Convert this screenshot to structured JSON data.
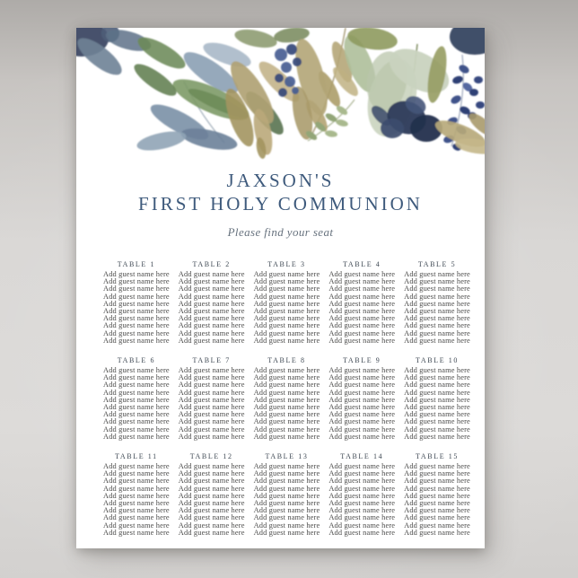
{
  "poster": {
    "title_line1": "JAXSON'S",
    "title_line2": "FIRST HOLY COMMUNION",
    "subtitle": "Please find your seat",
    "colors": {
      "title": "#3E5A7C",
      "subtitle": "#67727E",
      "table_header": "#3F4954",
      "guest_text": "#4A4A49",
      "poster_bg": "#FFFFFF",
      "backdrop_gray": "#D6D4D2"
    },
    "artwork": {
      "name": "watercolor-foliage-garland",
      "palette": {
        "navy": "#2C3A59",
        "berry_blue": "#475D92",
        "slate_blue": "#7A90A6",
        "pale_slate": "#A3B4C4",
        "green": "#7D9A66",
        "dark_green": "#4F6B46",
        "sage": "#C6D0BB",
        "olive": "#8E9A5E",
        "tan": "#B3A577"
      }
    },
    "seating": {
      "tables": [
        {
          "label": "TABLE 1",
          "guests": [
            "Add guest name here",
            "Add guest name here",
            "Add guest name here",
            "Add guest name here",
            "Add guest name here",
            "Add guest name here",
            "Add guest name here",
            "Add guest name here",
            "Add guest name here",
            "Add guest name here"
          ]
        },
        {
          "label": "TABLE 2",
          "guests": [
            "Add guest name here",
            "Add guest name here",
            "Add guest name here",
            "Add guest name here",
            "Add guest name here",
            "Add guest name here",
            "Add guest name here",
            "Add guest name here",
            "Add guest name here",
            "Add guest name here"
          ]
        },
        {
          "label": "TABLE 3",
          "guests": [
            "Add guest name here",
            "Add guest name here",
            "Add guest name here",
            "Add guest name here",
            "Add guest name here",
            "Add guest name here",
            "Add guest name here",
            "Add guest name here",
            "Add guest name here",
            "Add guest name here"
          ]
        },
        {
          "label": "TABLE 4",
          "guests": [
            "Add guest name here",
            "Add guest name here",
            "Add guest name here",
            "Add guest name here",
            "Add guest name here",
            "Add guest name here",
            "Add guest name here",
            "Add guest name here",
            "Add guest name here",
            "Add guest name here"
          ]
        },
        {
          "label": "TABLE 5",
          "guests": [
            "Add guest name here",
            "Add guest name here",
            "Add guest name here",
            "Add guest name here",
            "Add guest name here",
            "Add guest name here",
            "Add guest name here",
            "Add guest name here",
            "Add guest name here",
            "Add guest name here"
          ]
        },
        {
          "label": "TABLE 6",
          "guests": [
            "Add guest name here",
            "Add guest name here",
            "Add guest name here",
            "Add guest name here",
            "Add guest name here",
            "Add guest name here",
            "Add guest name here",
            "Add guest name here",
            "Add guest name here",
            "Add guest name here"
          ]
        },
        {
          "label": "TABLE 7",
          "guests": [
            "Add guest name here",
            "Add guest name here",
            "Add guest name here",
            "Add guest name here",
            "Add guest name here",
            "Add guest name here",
            "Add guest name here",
            "Add guest name here",
            "Add guest name here",
            "Add guest name here"
          ]
        },
        {
          "label": "TABLE 8",
          "guests": [
            "Add guest name here",
            "Add guest name here",
            "Add guest name here",
            "Add guest name here",
            "Add guest name here",
            "Add guest name here",
            "Add guest name here",
            "Add guest name here",
            "Add guest name here",
            "Add guest name here"
          ]
        },
        {
          "label": "TABLE 9",
          "guests": [
            "Add guest name here",
            "Add guest name here",
            "Add guest name here",
            "Add guest name here",
            "Add guest name here",
            "Add guest name here",
            "Add guest name here",
            "Add guest name here",
            "Add guest name here",
            "Add guest name here"
          ]
        },
        {
          "label": "TABLE 10",
          "guests": [
            "Add guest name here",
            "Add guest name here",
            "Add guest name here",
            "Add guest name here",
            "Add guest name here",
            "Add guest name here",
            "Add guest name here",
            "Add guest name here",
            "Add guest name here",
            "Add guest name here"
          ]
        },
        {
          "label": "TABLE 11",
          "guests": [
            "Add guest name here",
            "Add guest name here",
            "Add guest name here",
            "Add guest name here",
            "Add guest name here",
            "Add guest name here",
            "Add guest name here",
            "Add guest name here",
            "Add guest name here",
            "Add guest name here"
          ]
        },
        {
          "label": "TABLE 12",
          "guests": [
            "Add guest name here",
            "Add guest name here",
            "Add guest name here",
            "Add guest name here",
            "Add guest name here",
            "Add guest name here",
            "Add guest name here",
            "Add guest name here",
            "Add guest name here",
            "Add guest name here"
          ]
        },
        {
          "label": "TABLE 13",
          "guests": [
            "Add guest name here",
            "Add guest name here",
            "Add guest name here",
            "Add guest name here",
            "Add guest name here",
            "Add guest name here",
            "Add guest name here",
            "Add guest name here",
            "Add guest name here",
            "Add guest name here"
          ]
        },
        {
          "label": "TABLE 14",
          "guests": [
            "Add guest name here",
            "Add guest name here",
            "Add guest name here",
            "Add guest name here",
            "Add guest name here",
            "Add guest name here",
            "Add guest name here",
            "Add guest name here",
            "Add guest name here",
            "Add guest name here"
          ]
        },
        {
          "label": "TABLE 15",
          "guests": [
            "Add guest name here",
            "Add guest name here",
            "Add guest name here",
            "Add guest name here",
            "Add guest name here",
            "Add guest name here",
            "Add guest name here",
            "Add guest name here",
            "Add guest name here",
            "Add guest name here"
          ]
        }
      ]
    }
  }
}
